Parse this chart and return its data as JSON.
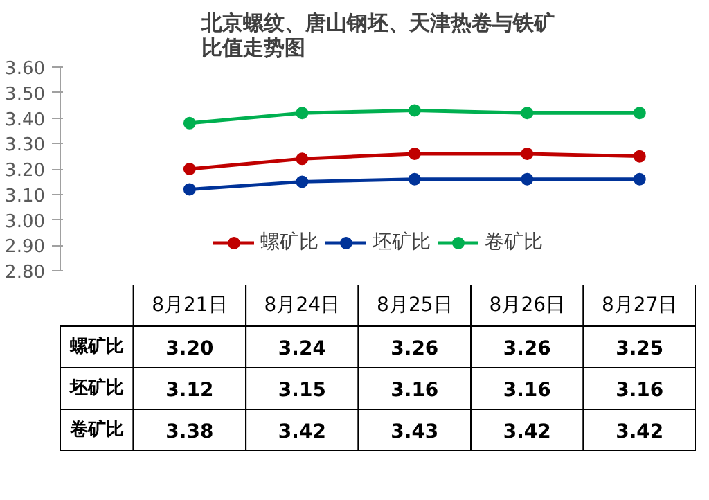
{
  "chart_data": {
    "type": "line",
    "title": "北京螺纹、唐山钢坯、天津热卷与铁矿比值走势图",
    "categories": [
      "8月21日",
      "8月24日",
      "8月25日",
      "8月26日",
      "8月27日"
    ],
    "series": [
      {
        "name": "螺矿比",
        "color": "#c00000",
        "values": [
          3.2,
          3.24,
          3.26,
          3.26,
          3.25
        ],
        "value_labels": [
          "3.20",
          "3.24",
          "3.26",
          "3.26",
          "3.25"
        ]
      },
      {
        "name": "坯矿比",
        "color": "#003399",
        "values": [
          3.12,
          3.15,
          3.16,
          3.16,
          3.16
        ],
        "value_labels": [
          "3.12",
          "3.15",
          "3.16",
          "3.16",
          "3.16"
        ]
      },
      {
        "name": "卷矿比",
        "color": "#00b050",
        "values": [
          3.38,
          3.42,
          3.43,
          3.42,
          3.42
        ],
        "value_labels": [
          "3.38",
          "3.42",
          "3.43",
          "3.42",
          "3.42"
        ]
      }
    ],
    "ylim": [
      2.8,
      3.6
    ],
    "yticks": [
      {
        "value": 2.8,
        "label": "2.80"
      },
      {
        "value": 2.9,
        "label": "2.90"
      },
      {
        "value": 3.0,
        "label": "3.00"
      },
      {
        "value": 3.1,
        "label": "3.10"
      },
      {
        "value": 3.2,
        "label": "3.20"
      },
      {
        "value": 3.3,
        "label": "3.30"
      },
      {
        "value": 3.4,
        "label": "3.40"
      },
      {
        "value": 3.5,
        "label": "3.50"
      },
      {
        "value": 3.6,
        "label": "3.60"
      }
    ],
    "grid": false,
    "legend": "bottom",
    "marker": "circle",
    "line_style": "solid"
  }
}
